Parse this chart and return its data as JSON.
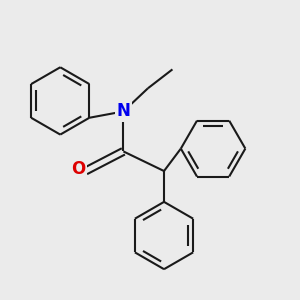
{
  "background_color": "#ebebeb",
  "bond_color": "#1a1a1a",
  "N_color": "#0000ee",
  "O_color": "#dd0000",
  "line_width": 1.5,
  "figsize": [
    3.0,
    3.0
  ],
  "dpi": 100,
  "N_fontsize": 12,
  "O_fontsize": 12,
  "xlim": [
    0.0,
    4.2
  ],
  "ylim": [
    -0.2,
    3.8
  ]
}
